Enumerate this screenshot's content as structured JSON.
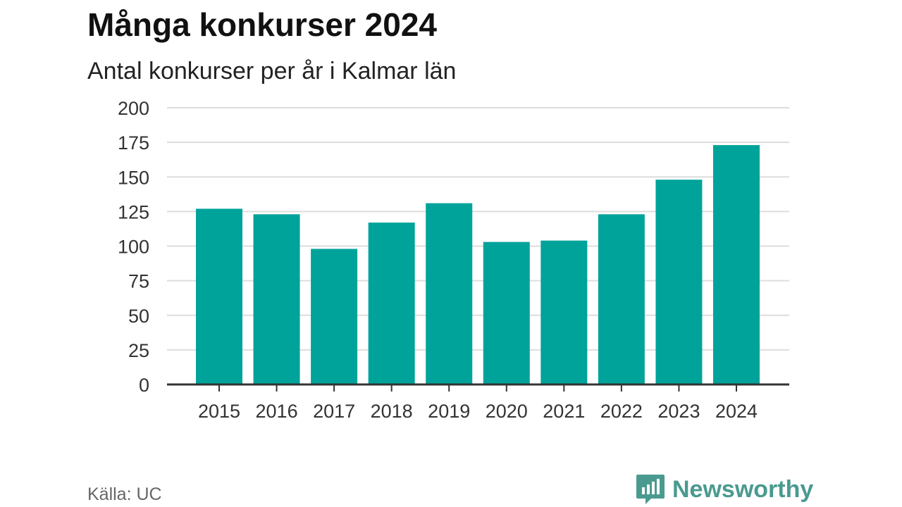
{
  "title": "Många konkurser 2024",
  "subtitle": "Antal konkurser per år i Kalmar län",
  "source": "Källa: UC",
  "brand": {
    "name": "Newsworthy",
    "logo_icon": "newsworthy-logo-icon"
  },
  "colors": {
    "bar": "#00a39a",
    "grid": "#dddddd",
    "axis": "#333333",
    "brand": "#4a9a90"
  },
  "chart_data": {
    "type": "bar",
    "categories": [
      "2015",
      "2016",
      "2017",
      "2018",
      "2019",
      "2020",
      "2021",
      "2022",
      "2023",
      "2024"
    ],
    "values": [
      127,
      123,
      98,
      117,
      131,
      103,
      104,
      123,
      148,
      173
    ],
    "ylim": [
      0,
      200
    ],
    "yticks": [
      0,
      25,
      50,
      75,
      100,
      125,
      150,
      175,
      200
    ],
    "xlabel": "",
    "ylabel": "",
    "grid": true
  }
}
